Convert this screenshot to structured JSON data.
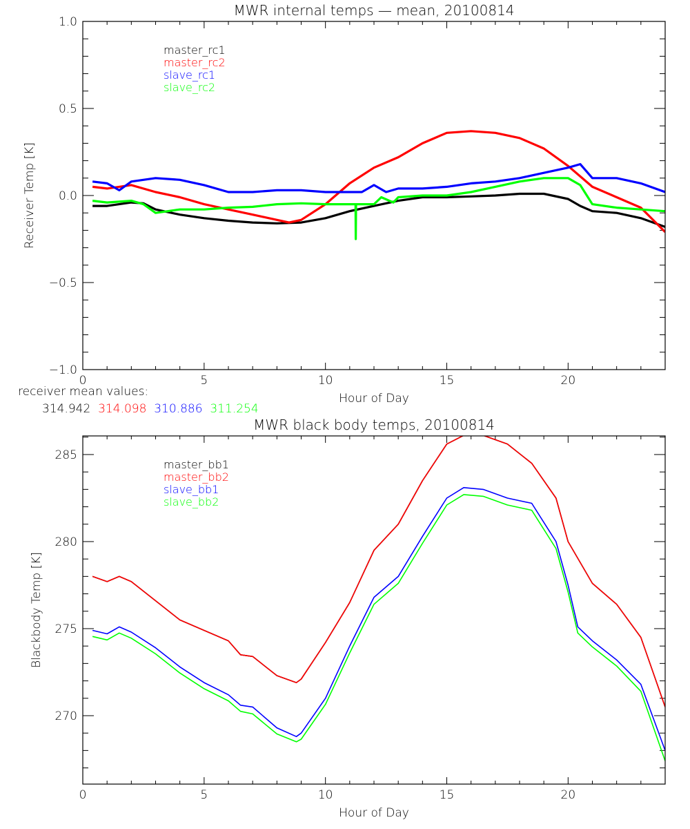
{
  "chart_data": [
    {
      "type": "line",
      "title": "MWR internal temps — mean, 20100814",
      "xlabel": "Hour of Day",
      "ylabel": "Receiver Temp [K]",
      "xlim": [
        0,
        24
      ],
      "ylim": [
        -1.0,
        1.0
      ],
      "xticks": [
        0,
        5,
        10,
        15,
        20
      ],
      "xtick_labels": [
        "0",
        "5",
        "10",
        "15",
        "20"
      ],
      "yticks": [
        -1.0,
        -0.5,
        0.0,
        0.5,
        1.0
      ],
      "ytick_labels": [
        "−1.0",
        "−0.5",
        "0.0",
        "0.5",
        "1.0"
      ],
      "grid": false,
      "legend_position": "top-left",
      "series": [
        {
          "name": "master_rc1",
          "color": "#000000",
          "x": [
            0.4,
            1,
            2,
            2.5,
            3,
            4,
            5,
            6,
            7,
            8,
            9,
            10,
            11,
            12,
            13,
            14,
            15,
            16,
            17,
            18,
            19,
            20,
            20.5,
            21,
            22,
            23,
            24
          ],
          "y": [
            -0.06,
            -0.06,
            -0.04,
            -0.045,
            -0.08,
            -0.11,
            -0.13,
            -0.145,
            -0.155,
            -0.16,
            -0.155,
            -0.13,
            -0.09,
            -0.06,
            -0.03,
            -0.01,
            -0.01,
            -0.005,
            0.0,
            0.01,
            0.01,
            -0.02,
            -0.06,
            -0.09,
            -0.1,
            -0.13,
            -0.18
          ]
        },
        {
          "name": "master_rc2",
          "color": "#ff0000",
          "x": [
            0.4,
            1,
            2,
            3,
            4,
            5,
            6,
            7,
            8,
            8.5,
            9,
            10,
            11,
            12,
            13,
            14,
            15,
            16,
            17,
            18,
            19,
            20,
            21,
            22,
            23,
            24
          ],
          "y": [
            0.05,
            0.04,
            0.06,
            0.02,
            -0.01,
            -0.05,
            -0.08,
            -0.11,
            -0.14,
            -0.155,
            -0.14,
            -0.05,
            0.07,
            0.16,
            0.22,
            0.3,
            0.36,
            0.37,
            0.36,
            0.33,
            0.27,
            0.17,
            0.05,
            -0.01,
            -0.07,
            -0.21
          ]
        },
        {
          "name": "slave_rc1",
          "color": "#0000ff",
          "x": [
            0.4,
            1,
            1.5,
            2,
            3,
            4,
            5,
            6,
            7,
            8,
            9,
            10,
            11,
            11.5,
            12,
            12.5,
            13,
            14,
            15,
            16,
            17,
            18,
            19,
            20,
            20.5,
            21,
            22,
            23,
            24
          ],
          "y": [
            0.08,
            0.07,
            0.03,
            0.08,
            0.1,
            0.09,
            0.06,
            0.02,
            0.02,
            0.03,
            0.03,
            0.02,
            0.02,
            0.02,
            0.06,
            0.02,
            0.04,
            0.04,
            0.05,
            0.07,
            0.08,
            0.1,
            0.13,
            0.16,
            0.18,
            0.1,
            0.1,
            0.07,
            0.02
          ]
        },
        {
          "name": "slave_rc2",
          "color": "#00ff00",
          "x": [
            0.4,
            1,
            2,
            2.5,
            3,
            4,
            5,
            6,
            7,
            8,
            9,
            10,
            11,
            11.24,
            11.25,
            11.26,
            12,
            12.3,
            12.8,
            13,
            14,
            15,
            16,
            17,
            18,
            19,
            20,
            20.5,
            21,
            22,
            23,
            24
          ],
          "y": [
            -0.03,
            -0.04,
            -0.03,
            -0.05,
            -0.1,
            -0.08,
            -0.08,
            -0.07,
            -0.065,
            -0.05,
            -0.045,
            -0.05,
            -0.05,
            -0.05,
            -0.25,
            -0.05,
            -0.05,
            -0.01,
            -0.04,
            -0.01,
            0.0,
            0.0,
            0.02,
            0.05,
            0.08,
            0.1,
            0.1,
            0.06,
            -0.05,
            -0.07,
            -0.08,
            -0.09
          ]
        }
      ]
    },
    {
      "type": "line",
      "title": "MWR black body temps, 20100814",
      "xlabel": "Hour of Day",
      "ylabel": "Blackbody Temp [K]",
      "xlim": [
        0,
        24
      ],
      "ylim": [
        266.07,
        286.07
      ],
      "xticks": [
        0,
        5,
        10,
        15,
        20
      ],
      "xtick_labels": [
        "0",
        "5",
        "10",
        "15",
        "20"
      ],
      "yticks": [
        270,
        275,
        280,
        285
      ],
      "ytick_labels": [
        "270",
        "275",
        "280",
        "285"
      ],
      "grid": false,
      "legend_position": "top-left",
      "series": [
        {
          "name": "master_bb1",
          "color": "#000000",
          "x": [
            0.4,
            1,
            1.5,
            2,
            3,
            4,
            5,
            6,
            6.5,
            7,
            8,
            8.8,
            9,
            10,
            11,
            12,
            13,
            14,
            15,
            15.7,
            16.5,
            17.5,
            18.5,
            19.5,
            20,
            21,
            22,
            23,
            24
          ],
          "y": [
            278.0,
            277.7,
            278.0,
            277.7,
            276.6,
            275.5,
            274.9,
            274.3,
            273.5,
            273.4,
            272.3,
            271.9,
            272.1,
            274.2,
            276.5,
            279.5,
            281.0,
            283.5,
            285.6,
            286.1,
            286.1,
            285.6,
            284.5,
            282.5,
            280.0,
            277.6,
            276.4,
            274.5,
            270.5
          ]
        },
        {
          "name": "master_bb2",
          "color": "#ff0000",
          "x": [
            0.4,
            1,
            1.5,
            2,
            3,
            4,
            5,
            6,
            6.5,
            7,
            8,
            8.8,
            9,
            10,
            11,
            12,
            13,
            14,
            15,
            15.7,
            16.5,
            17.5,
            18.5,
            19.5,
            20,
            21,
            22,
            23,
            24
          ],
          "y": [
            278.0,
            277.7,
            278.0,
            277.7,
            276.6,
            275.5,
            274.9,
            274.3,
            273.5,
            273.4,
            272.3,
            271.9,
            272.1,
            274.2,
            276.5,
            279.5,
            281.0,
            283.5,
            285.6,
            286.1,
            286.1,
            285.6,
            284.5,
            282.5,
            280.0,
            277.6,
            276.4,
            274.5,
            270.5
          ]
        },
        {
          "name": "slave_bb1",
          "color": "#0000ff",
          "x": [
            0.4,
            1,
            1.5,
            2,
            3,
            4,
            5,
            6,
            6.5,
            7,
            8,
            8.8,
            9,
            10,
            11,
            12,
            13,
            14,
            15,
            15.7,
            16.5,
            17.5,
            18.5,
            19.5,
            20,
            20.4,
            21,
            22,
            23,
            24
          ],
          "y": [
            274.9,
            274.7,
            275.1,
            274.8,
            273.9,
            272.8,
            271.9,
            271.2,
            270.6,
            270.5,
            269.3,
            268.8,
            269.0,
            271.0,
            274.0,
            276.8,
            278.0,
            280.3,
            282.5,
            283.1,
            283.0,
            282.5,
            282.2,
            280.0,
            277.5,
            275.1,
            274.3,
            273.2,
            271.8,
            268.0
          ]
        },
        {
          "name": "slave_bb2",
          "color": "#00ff00",
          "x": [
            0.4,
            1,
            1.5,
            2,
            3,
            4,
            5,
            6,
            6.5,
            7,
            8,
            8.8,
            9,
            10,
            11,
            12,
            13,
            14,
            15,
            15.7,
            16.5,
            17.5,
            18.5,
            19.5,
            20,
            20.4,
            21,
            22,
            23,
            24
          ],
          "y": [
            274.55,
            274.35,
            274.75,
            274.45,
            273.55,
            272.45,
            271.55,
            270.85,
            270.25,
            270.1,
            268.95,
            268.5,
            268.65,
            270.65,
            273.6,
            276.4,
            277.6,
            279.9,
            282.1,
            282.7,
            282.6,
            282.1,
            281.8,
            279.6,
            277.1,
            274.75,
            273.95,
            272.85,
            271.4,
            267.4
          ]
        }
      ]
    }
  ],
  "receiver_mean": {
    "label": "receiver mean values:",
    "values": [
      {
        "text": "314.942",
        "color": "#000000"
      },
      {
        "text": "314.098",
        "color": "#ff0000"
      },
      {
        "text": "310.886",
        "color": "#0000ff"
      },
      {
        "text": "311.254",
        "color": "#00ff00"
      }
    ]
  }
}
